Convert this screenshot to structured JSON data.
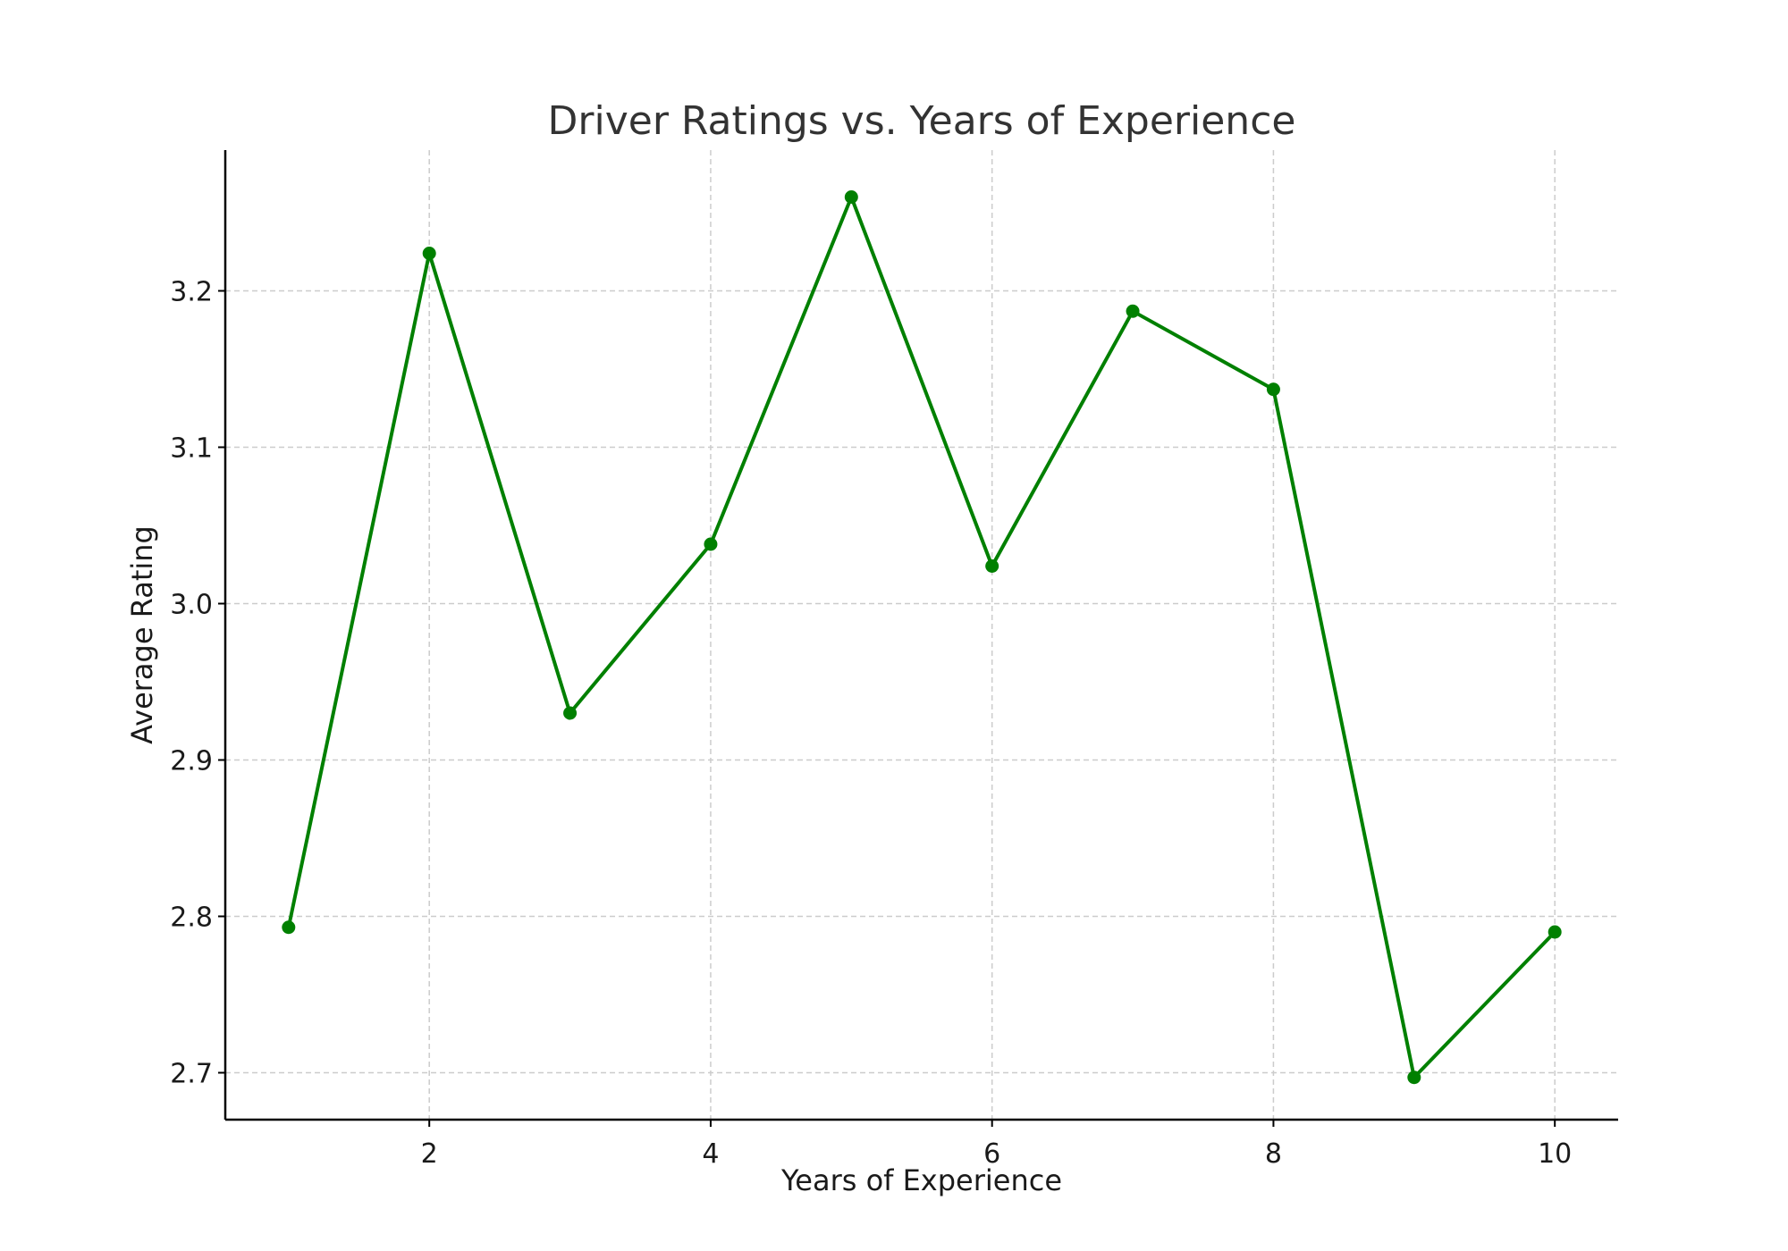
{
  "chart_data": {
    "type": "line",
    "title": "Driver Ratings vs. Years of Experience",
    "xlabel": "Years of Experience",
    "ylabel": "Average Rating",
    "x": [
      1,
      2,
      3,
      4,
      5,
      6,
      7,
      8,
      9,
      10
    ],
    "series": [
      {
        "values": [
          2.793,
          3.224,
          2.93,
          3.038,
          3.26,
          3.024,
          3.187,
          3.137,
          2.697,
          2.79
        ]
      }
    ],
    "xlim": [
      0.55,
      10.45
    ],
    "ylim": [
      2.67,
      3.29
    ],
    "xticks": [
      2,
      4,
      6,
      8,
      10
    ],
    "xtick_labels": [
      "2",
      "4",
      "6",
      "8",
      "10"
    ],
    "yticks": [
      2.7,
      2.8,
      2.9,
      3.0,
      3.1,
      3.2
    ],
    "ytick_labels": [
      "2.7",
      "2.8",
      "2.9",
      "3.0",
      "3.1",
      "3.2"
    ],
    "grid": true,
    "line_color": "#008000",
    "marker": "circle"
  }
}
